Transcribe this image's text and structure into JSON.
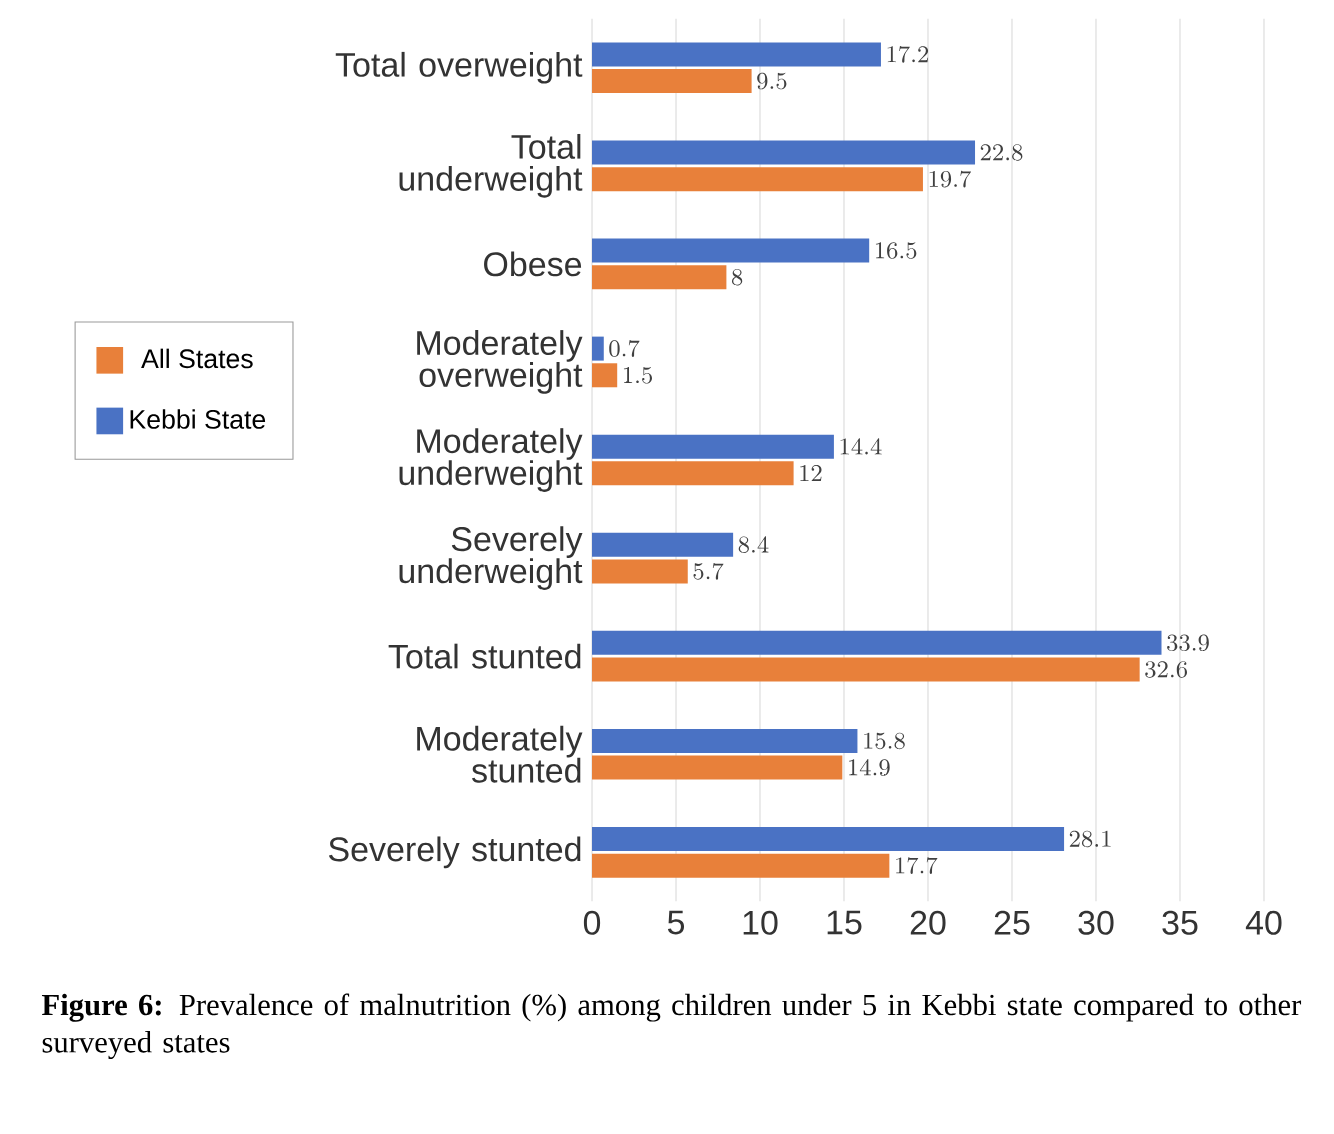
{
  "chart_data": {
    "type": "bar",
    "orientation": "horizontal",
    "categories": [
      "Total overweight",
      "Total underweight",
      "Obese",
      "Moderately overweight",
      "Moderately underweight",
      "Severely underweight",
      "Total stunted",
      "Moderately stunted",
      "Severely stunted"
    ],
    "series": [
      {
        "name": "All States",
        "color": "#e8803a",
        "values": [
          9.5,
          19.7,
          8,
          1.5,
          12,
          5.7,
          32.6,
          14.9,
          17.7
        ]
      },
      {
        "name": "Kebbi State",
        "color": "#4a72c4",
        "values": [
          17.2,
          22.8,
          16.5,
          0.7,
          14.4,
          8.4,
          33.9,
          15.8,
          28.1
        ]
      }
    ],
    "xlim": [
      0,
      40
    ],
    "xticks": [
      0,
      5,
      10,
      15,
      20,
      25,
      30,
      35,
      40
    ],
    "grid": "x",
    "legend": "left",
    "data_labels": true,
    "annotations": [
      "**Figure 6:** Prevalence of malnutrition (%) among children under 5 in Kebbi state compared to other surveyed states"
    ]
  }
}
